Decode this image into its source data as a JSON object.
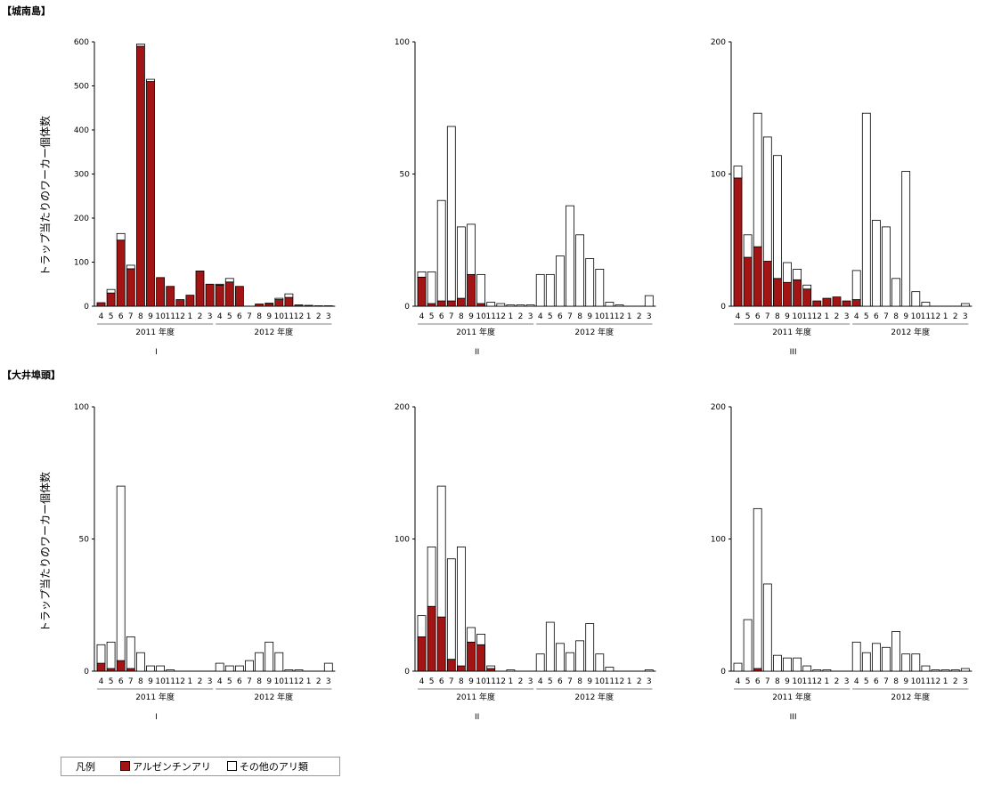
{
  "section_titles": [
    "【城南島】",
    "【大井埠頭】"
  ],
  "ylabel": "トラップ当たりのワーカー個体数",
  "legend": {
    "title": "凡例",
    "series": [
      "アルゼンチンアリ",
      "その他のアリ類"
    ],
    "colors": {
      "argentine": "#a31515",
      "other": "#ffffff"
    }
  },
  "chart_data": [
    {
      "type": "bar",
      "section": "【城南島】",
      "panel_label": "I",
      "year_labels": [
        "2011 年度",
        "2012 年度"
      ],
      "month_labels": [
        "4",
        "5",
        "6",
        "7",
        "8",
        "9",
        "10",
        "11",
        "12",
        "1",
        "2",
        "3",
        "4",
        "5",
        "6",
        "7",
        "8",
        "9",
        "10",
        "11",
        "12",
        "1",
        "2",
        "3"
      ],
      "ylim": [
        0,
        600
      ],
      "yticks": [
        0,
        100,
        200,
        300,
        400,
        500,
        600
      ],
      "series": [
        {
          "name": "アルゼンチンアリ",
          "values": [
            8,
            30,
            150,
            85,
            590,
            510,
            65,
            45,
            15,
            25,
            80,
            50,
            48,
            55,
            45,
            0,
            5,
            5,
            15,
            20,
            3,
            2,
            1,
            1
          ]
        },
        {
          "name": "その他のアリ類",
          "values": [
            0,
            8,
            15,
            8,
            5,
            5,
            0,
            0,
            0,
            0,
            0,
            0,
            2,
            8,
            0,
            0,
            0,
            2,
            3,
            8,
            0,
            0,
            0,
            0
          ]
        }
      ]
    },
    {
      "type": "bar",
      "section": "【城南島】",
      "panel_label": "II",
      "year_labels": [
        "2011 年度",
        "2012 年度"
      ],
      "month_labels": [
        "4",
        "5",
        "6",
        "7",
        "8",
        "9",
        "10",
        "11",
        "12",
        "1",
        "2",
        "3",
        "4",
        "5",
        "6",
        "7",
        "8",
        "9",
        "10",
        "11",
        "12",
        "1",
        "2",
        "3"
      ],
      "ylim": [
        0,
        100
      ],
      "yticks": [
        0,
        50,
        100
      ],
      "series": [
        {
          "name": "アルゼンチンアリ",
          "values": [
            11,
            1,
            2,
            2,
            3,
            12,
            1,
            0,
            0,
            0,
            0,
            0,
            0,
            0,
            0,
            0,
            0,
            0,
            0,
            0,
            0,
            0,
            0,
            0
          ]
        },
        {
          "name": "その他のアリ類",
          "values": [
            2,
            12,
            38,
            66,
            27,
            19,
            11,
            1.5,
            1,
            0.5,
            0.5,
            0.5,
            12,
            12,
            19,
            38,
            27,
            18,
            14,
            1.5,
            0.5,
            0,
            0,
            4
          ]
        }
      ]
    },
    {
      "type": "bar",
      "section": "【城南島】",
      "panel_label": "III",
      "year_labels": [
        "2011 年度",
        "2012 年度"
      ],
      "month_labels": [
        "4",
        "5",
        "6",
        "7",
        "8",
        "9",
        "10",
        "11",
        "12",
        "1",
        "2",
        "3",
        "4",
        "5",
        "6",
        "7",
        "8",
        "9",
        "10",
        "11",
        "12",
        "1",
        "2",
        "3"
      ],
      "ylim": [
        0,
        200
      ],
      "yticks": [
        0,
        100,
        200
      ],
      "series": [
        {
          "name": "アルゼンチンアリ",
          "values": [
            97,
            37,
            45,
            34,
            21,
            18,
            20,
            13,
            4,
            6,
            7,
            4,
            5,
            0,
            0,
            0,
            0,
            0,
            0,
            0,
            0,
            0,
            0,
            0
          ]
        },
        {
          "name": "その他のアリ類",
          "values": [
            9,
            17,
            101,
            94,
            93,
            15,
            8,
            3,
            0,
            0,
            0,
            0,
            22,
            146,
            65,
            60,
            21,
            102,
            11,
            3,
            0,
            0,
            0,
            2
          ]
        }
      ]
    },
    {
      "type": "bar",
      "section": "【大井埠頭】",
      "panel_label": "I",
      "year_labels": [
        "2011 年度",
        "2012 年度"
      ],
      "month_labels": [
        "4",
        "5",
        "6",
        "7",
        "8",
        "9",
        "10",
        "11",
        "12",
        "1",
        "2",
        "3",
        "4",
        "5",
        "6",
        "7",
        "8",
        "9",
        "10",
        "11",
        "12",
        "1",
        "2",
        "3"
      ],
      "ylim": [
        0,
        100
      ],
      "yticks": [
        0,
        50,
        100
      ],
      "series": [
        {
          "name": "アルゼンチンアリ",
          "values": [
            3,
            1,
            4,
            1,
            0,
            0,
            0,
            0,
            0,
            0,
            0,
            0,
            0,
            0,
            0,
            0,
            0,
            0,
            0,
            0,
            0,
            0,
            0,
            0
          ]
        },
        {
          "name": "その他のアリ類",
          "values": [
            7,
            10,
            66,
            12,
            7,
            2,
            2,
            0.5,
            0,
            0,
            0,
            0,
            3,
            2,
            2,
            4,
            7,
            11,
            7,
            0.5,
            0.5,
            0,
            0,
            3
          ]
        }
      ]
    },
    {
      "type": "bar",
      "section": "【大井埠頭】",
      "panel_label": "II",
      "year_labels": [
        "2011 年度",
        "2012 年度"
      ],
      "month_labels": [
        "4",
        "5",
        "6",
        "7",
        "8",
        "9",
        "10",
        "11",
        "12",
        "1",
        "2",
        "3",
        "4",
        "5",
        "6",
        "7",
        "8",
        "9",
        "10",
        "11",
        "12",
        "1",
        "2",
        "3"
      ],
      "ylim": [
        0,
        200
      ],
      "yticks": [
        0,
        100,
        200
      ],
      "series": [
        {
          "name": "アルゼンチンアリ",
          "values": [
            26,
            49,
            41,
            9,
            4,
            22,
            20,
            2,
            0,
            0,
            0,
            0,
            0,
            0,
            0,
            0,
            0,
            0,
            0,
            0,
            0,
            0,
            0,
            0
          ]
        },
        {
          "name": "その他のアリ類",
          "values": [
            16,
            45,
            99,
            76,
            90,
            11,
            8,
            2,
            0,
            1,
            0,
            0,
            13,
            37,
            21,
            14,
            23,
            36,
            13,
            3,
            0,
            0,
            0,
            1
          ]
        }
      ]
    },
    {
      "type": "bar",
      "section": "【大井埠頭】",
      "panel_label": "III",
      "year_labels": [
        "2011 年度",
        "2012 年度"
      ],
      "month_labels": [
        "4",
        "5",
        "6",
        "7",
        "8",
        "9",
        "10",
        "11",
        "12",
        "1",
        "2",
        "3",
        "4",
        "5",
        "6",
        "7",
        "8",
        "9",
        "10",
        "11",
        "12",
        "1",
        "2",
        "3"
      ],
      "ylim": [
        0,
        200
      ],
      "yticks": [
        0,
        100,
        200
      ],
      "series": [
        {
          "name": "アルゼンチンアリ",
          "values": [
            0,
            0,
            2,
            0,
            0,
            0,
            0,
            0,
            0,
            0,
            0,
            0,
            0,
            0,
            0,
            0,
            0,
            0,
            0,
            0,
            0,
            0,
            0,
            0
          ]
        },
        {
          "name": "その他のアリ類",
          "values": [
            6,
            39,
            121,
            66,
            12,
            10,
            10,
            4,
            1,
            1,
            0,
            0,
            22,
            14,
            21,
            18,
            30,
            13,
            13,
            4,
            1,
            1,
            1,
            2
          ]
        }
      ]
    }
  ]
}
